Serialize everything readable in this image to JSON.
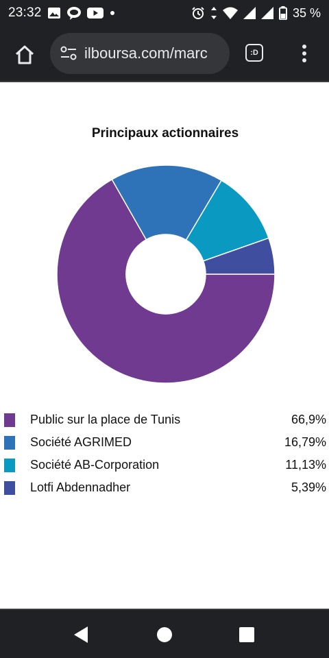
{
  "status_bar": {
    "time": "23:32",
    "battery_text": "35 %",
    "icons": [
      "image-icon",
      "chat-bubble-icon",
      "youtube-icon",
      "dot-icon",
      "alarm-icon",
      "data-arrows-icon",
      "wifi-icon",
      "signal-icon",
      "signal-icon",
      "battery-icon"
    ]
  },
  "browser": {
    "url": "ilboursa.com/marc",
    "tab_badge": ":D",
    "icons": [
      "home-icon",
      "site-settings-icon",
      "tab-switcher-icon",
      "more-vert-icon"
    ]
  },
  "chart_data": {
    "type": "pie",
    "title": "Principaux actionnaires",
    "donut": true,
    "categories": [
      "Public sur la place de Tunis",
      "Société AGRIMED",
      "Société AB-Corporation",
      "Lotfi Abdennadher"
    ],
    "values": [
      66.9,
      16.79,
      11.13,
      5.39
    ],
    "value_labels": [
      "66,9%",
      "16,79%",
      "11,13%",
      "5,39%"
    ],
    "colors": [
      "#6f3a8f",
      "#2e72b7",
      "#0a99c1",
      "#3f4e9e"
    ],
    "legend_position": "bottom"
  },
  "nav_bar": {
    "icons": [
      "back-icon",
      "home-circle-icon",
      "recents-icon"
    ]
  }
}
